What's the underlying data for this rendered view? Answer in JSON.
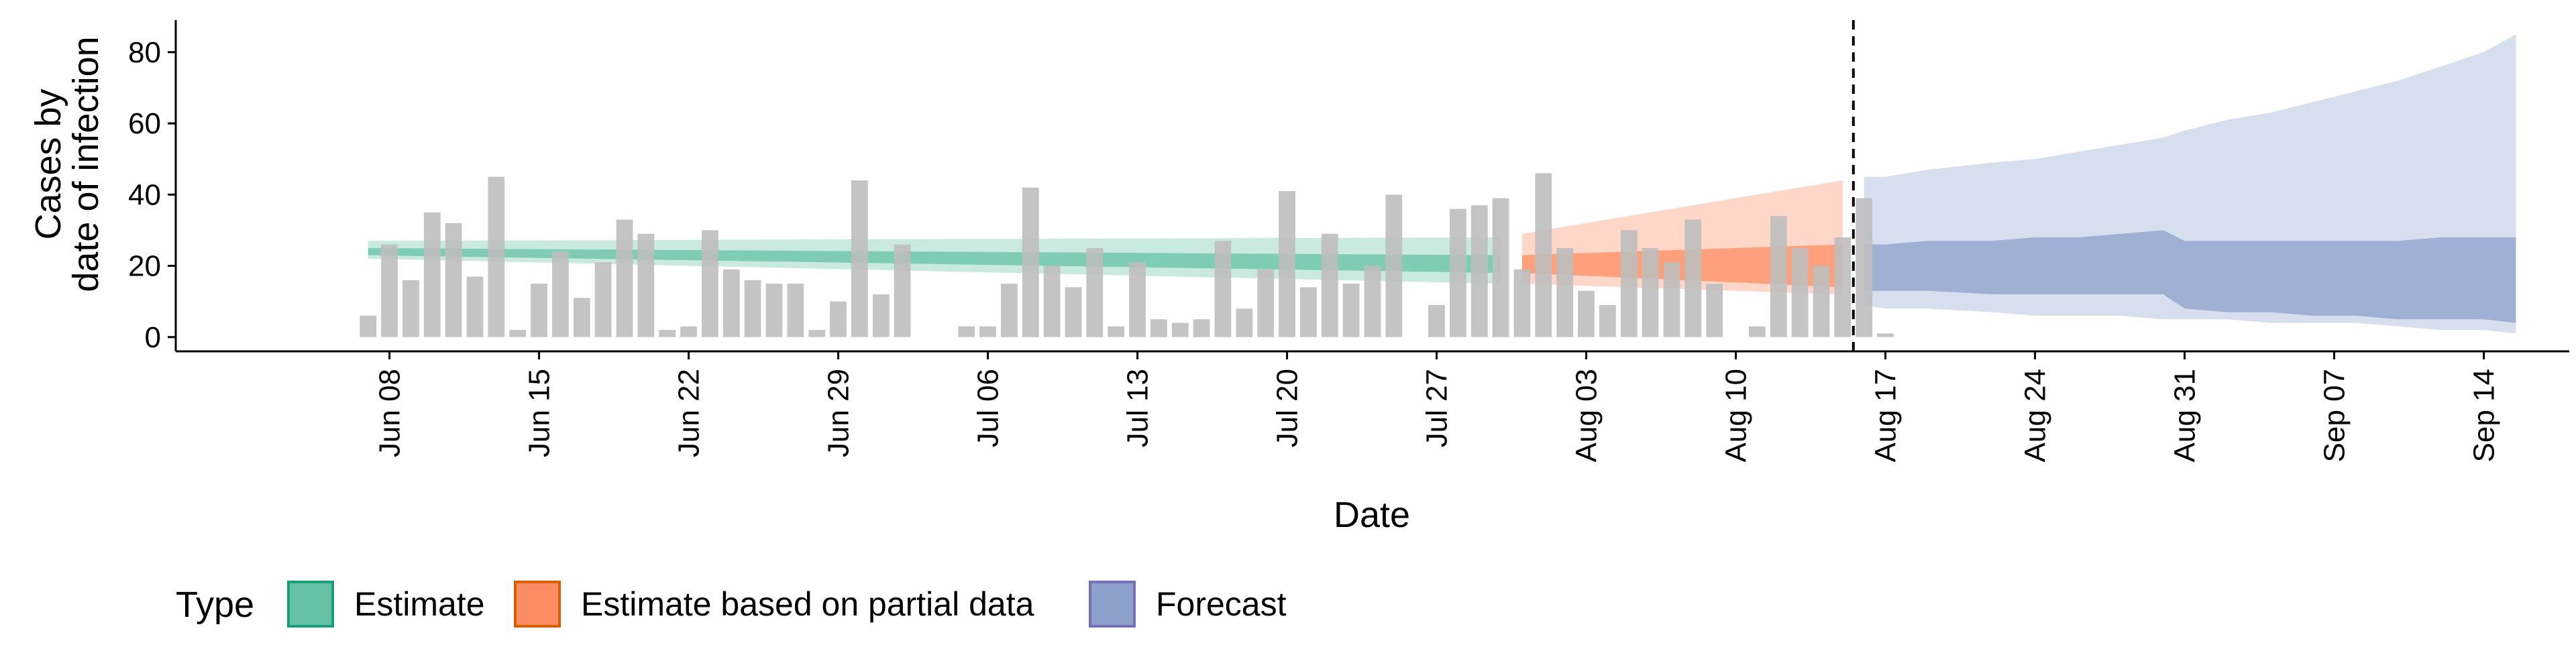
{
  "chart_data": {
    "type": "bar",
    "ylabel_lines": [
      "Cases by",
      "date of infection"
    ],
    "xlabel": "Date",
    "ylim": [
      -4,
      89
    ],
    "y_ticks": [
      0,
      20,
      40,
      60,
      80
    ],
    "x_tick_labels": [
      "Jun 08",
      "Jun 15",
      "Jun 22",
      "Jun 29",
      "Jul 06",
      "Jul 13",
      "Jul 20",
      "Jul 27",
      "Aug 03",
      "Aug 10",
      "Aug 17",
      "Aug 24",
      "Aug 31",
      "Sep 07",
      "Sep 14"
    ],
    "x_range_days": [
      -10,
      102
    ],
    "tick_start_day": 0,
    "tick_step_days": 7,
    "forecast_cutoff_day": 68.5,
    "bars": {
      "start_day": -1,
      "values": [
        6,
        26,
        16,
        35,
        32,
        17,
        45,
        2,
        15,
        24,
        11,
        21,
        33,
        29,
        2,
        3,
        30,
        19,
        16,
        15,
        15,
        2,
        10,
        44,
        12,
        26,
        0,
        0,
        3,
        3,
        15,
        42,
        20,
        14,
        25,
        3,
        21,
        5,
        4,
        5,
        27,
        8,
        19,
        41,
        14,
        29,
        15,
        20,
        40,
        0,
        9,
        36,
        37,
        39,
        19,
        46,
        25,
        13,
        9,
        30,
        25,
        21,
        33,
        15,
        0,
        3,
        34,
        25,
        20,
        28,
        39,
        1
      ]
    },
    "bands": [
      {
        "type": "Estimate",
        "color": "#66C2A5",
        "days": [
          -1,
          52
        ],
        "outer_lower": [
          22,
          15
        ],
        "outer_upper": [
          27,
          28
        ],
        "inner_lower": [
          23,
          18
        ],
        "inner_upper": [
          25,
          23
        ]
      },
      {
        "type": "Estimate based on partial data",
        "color": "#FC8D62",
        "days": [
          53,
          68
        ],
        "outer_lower": [
          15,
          12
        ],
        "outer_upper": [
          29,
          44
        ],
        "inner_lower": [
          18,
          14
        ],
        "inner_upper": [
          23,
          26
        ]
      },
      {
        "type": "Forecast",
        "color": "#8DA0CB",
        "points": [
          {
            "day": 69,
            "ol": 9,
            "il": 13,
            "iu": 26,
            "ou": 45
          },
          {
            "day": 70,
            "ol": 8,
            "il": 13,
            "iu": 26,
            "ou": 45
          },
          {
            "day": 72,
            "ol": 8,
            "il": 13,
            "iu": 27,
            "ou": 47
          },
          {
            "day": 75,
            "ol": 7,
            "il": 12,
            "iu": 27,
            "ou": 49
          },
          {
            "day": 77,
            "ol": 6,
            "il": 12,
            "iu": 28,
            "ou": 50
          },
          {
            "day": 79,
            "ol": 6,
            "il": 12,
            "iu": 28,
            "ou": 52
          },
          {
            "day": 81,
            "ol": 6,
            "il": 12,
            "iu": 29,
            "ou": 54
          },
          {
            "day": 83,
            "ol": 5,
            "il": 12,
            "iu": 30,
            "ou": 56
          },
          {
            "day": 84,
            "ol": 5,
            "il": 8,
            "iu": 27,
            "ou": 58
          },
          {
            "day": 86,
            "ol": 5,
            "il": 7,
            "iu": 27,
            "ou": 61
          },
          {
            "day": 88,
            "ol": 4,
            "il": 7,
            "iu": 27,
            "ou": 63
          },
          {
            "day": 90,
            "ol": 4,
            "il": 6,
            "iu": 27,
            "ou": 66
          },
          {
            "day": 92,
            "ol": 4,
            "il": 6,
            "iu": 27,
            "ou": 69
          },
          {
            "day": 94,
            "ol": 3,
            "il": 5,
            "iu": 27,
            "ou": 72
          },
          {
            "day": 96,
            "ol": 2,
            "il": 5,
            "iu": 28,
            "ou": 76
          },
          {
            "day": 98,
            "ol": 2,
            "il": 5,
            "iu": 28,
            "ou": 80
          },
          {
            "day": 99.5,
            "ol": 1,
            "il": 4,
            "iu": 28,
            "ou": 85
          }
        ]
      }
    ],
    "legend": {
      "placement": "bottom-left",
      "title": "Type",
      "items": [
        {
          "label": "Estimate",
          "fill": "#66C2A5",
          "border": "#1B9E77"
        },
        {
          "label": "Estimate based on partial data",
          "fill": "#FC8D62",
          "border": "#D95F02"
        },
        {
          "label": "Forecast",
          "fill": "#8DA0CB",
          "border": "#7570B3"
        }
      ]
    },
    "bar_color": "#BEBEBE",
    "grid": false
  }
}
